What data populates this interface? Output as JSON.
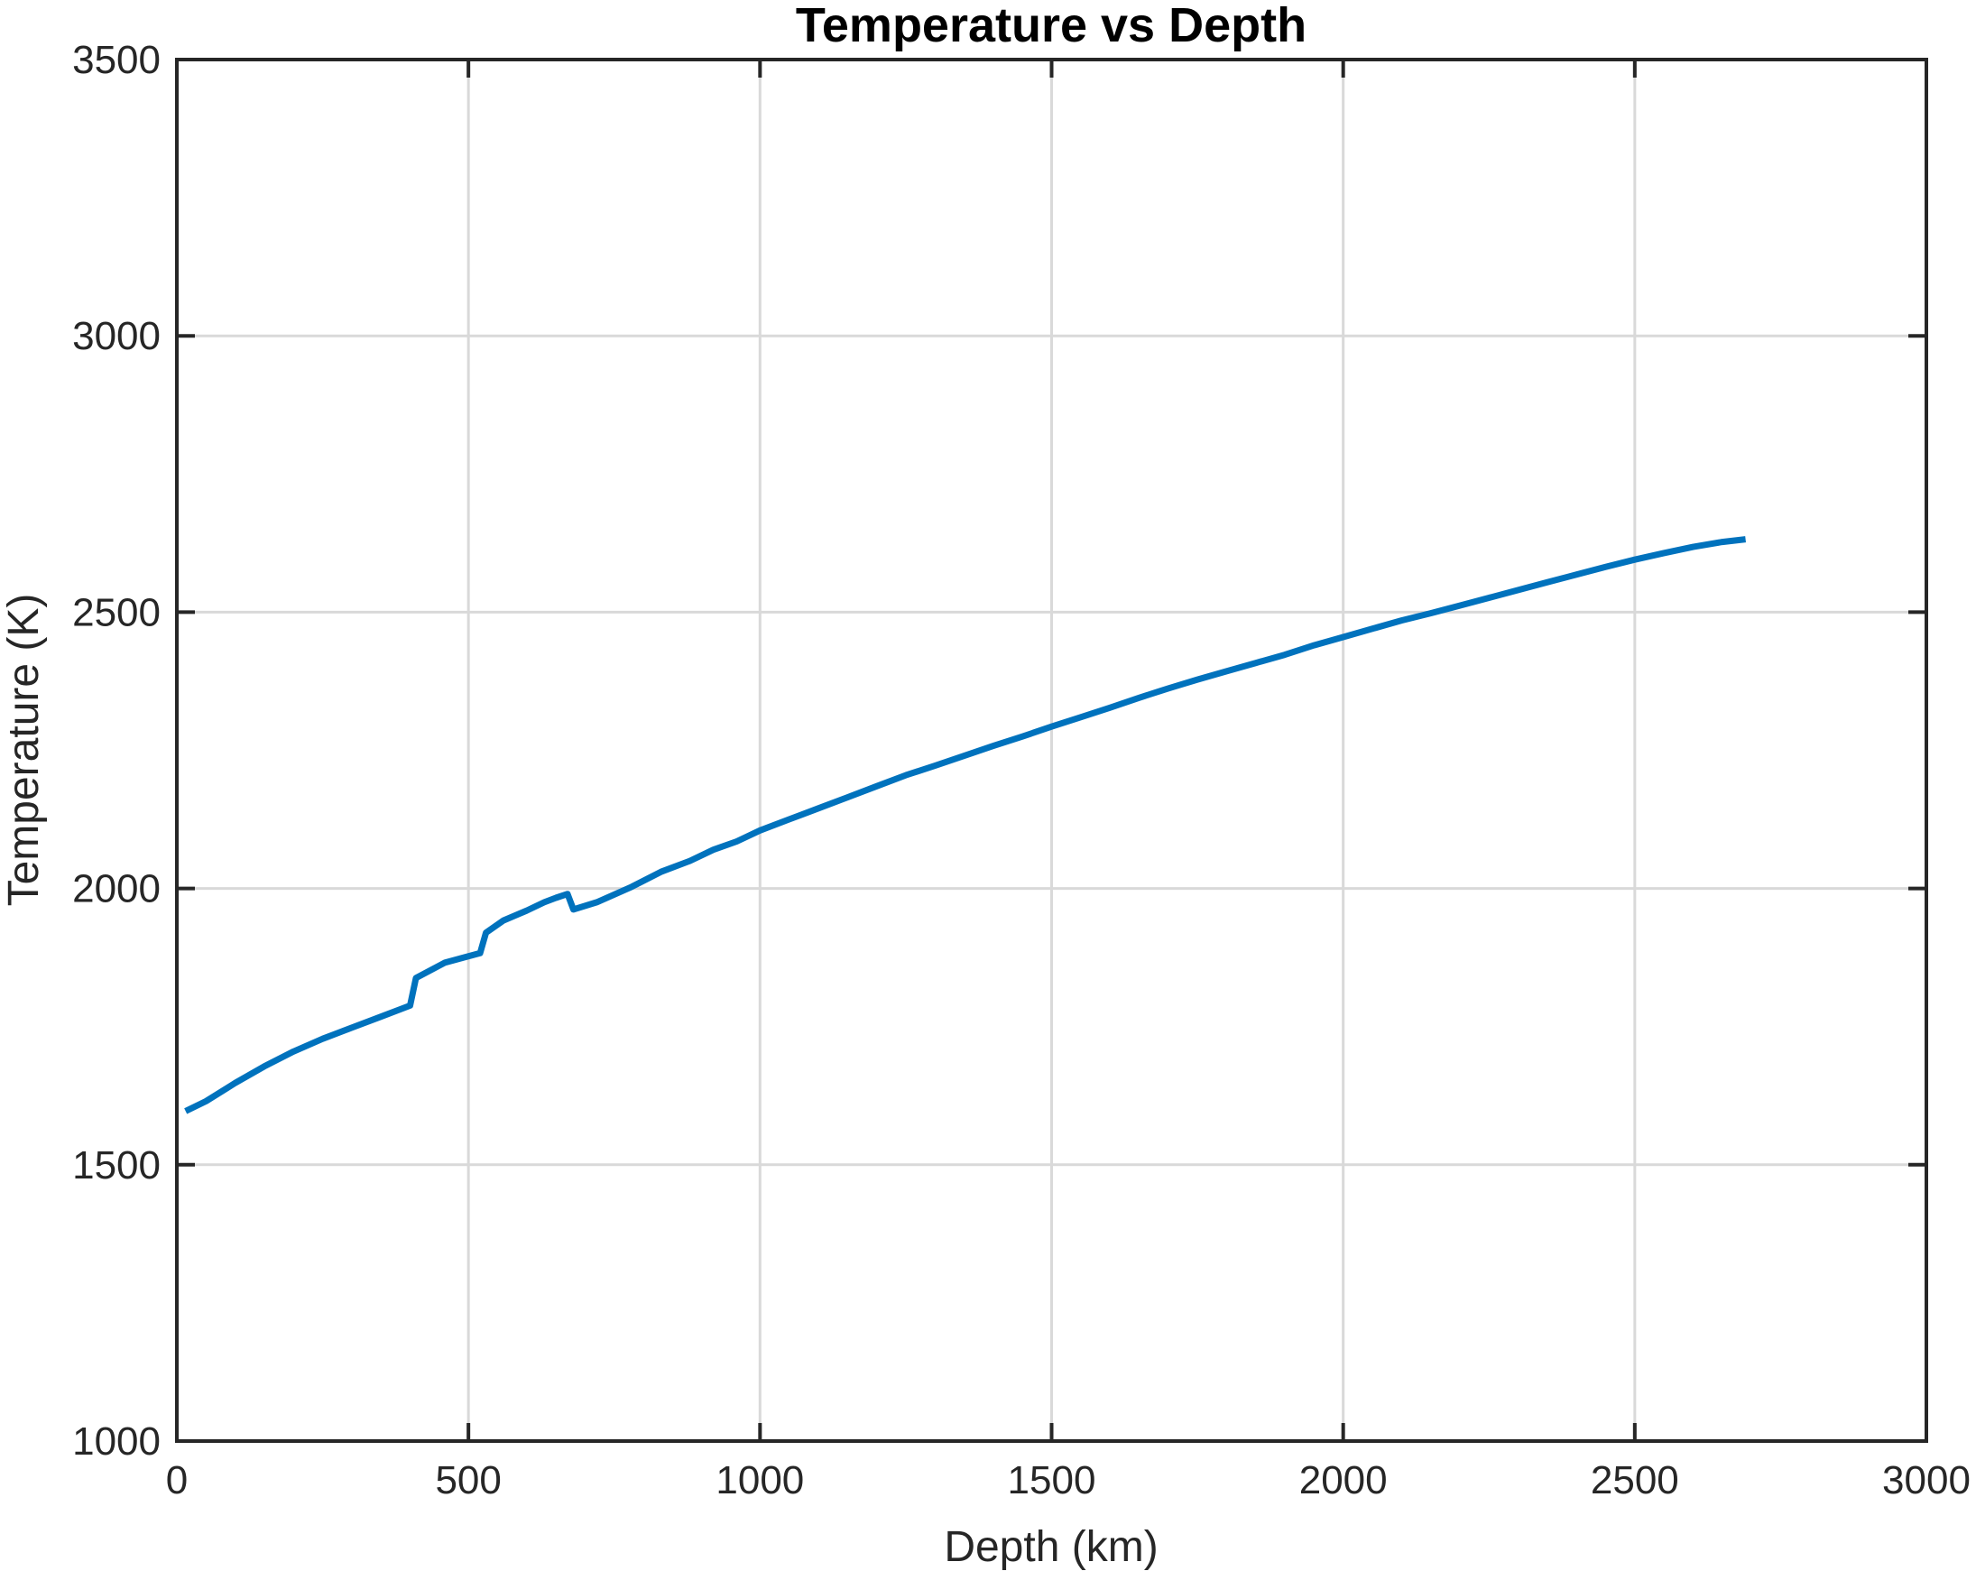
{
  "chart_data": {
    "type": "line",
    "title": "Temperature vs Depth",
    "xlabel": "Depth (km)",
    "ylabel": "Temperature (K)",
    "xlim": [
      0,
      3000
    ],
    "ylim": [
      1000,
      3500
    ],
    "xticks": [
      0,
      500,
      1000,
      1500,
      2000,
      2500,
      3000
    ],
    "yticks": [
      1000,
      1500,
      2000,
      2500,
      3000,
      3500
    ],
    "xtick_labels": [
      "0",
      "500",
      "1000",
      "1500",
      "2000",
      "2500",
      "3000"
    ],
    "ytick_labels": [
      "1000",
      "1500",
      "2000",
      "2500",
      "3000",
      "3500"
    ],
    "grid": true,
    "box": true,
    "series": [
      {
        "color": "#0072BD",
        "x": [
          15,
          50,
          100,
          150,
          200,
          250,
          300,
          350,
          400,
          410,
          460,
          520,
          530,
          560,
          600,
          630,
          650,
          670,
          680,
          720,
          780,
          830,
          880,
          920,
          960,
          1000,
          1050,
          1100,
          1150,
          1200,
          1250,
          1300,
          1350,
          1400,
          1450,
          1500,
          1550,
          1600,
          1650,
          1700,
          1750,
          1800,
          1850,
          1900,
          1950,
          2000,
          2050,
          2100,
          2150,
          2200,
          2250,
          2300,
          2350,
          2400,
          2450,
          2500,
          2550,
          2600,
          2650,
          2690
        ],
        "y": [
          1597,
          1615,
          1648,
          1678,
          1705,
          1728,
          1748,
          1768,
          1788,
          1838,
          1866,
          1883,
          1920,
          1942,
          1960,
          1975,
          1983,
          1990,
          1962,
          1975,
          2003,
          2030,
          2050,
          2070,
          2085,
          2105,
          2125,
          2145,
          2165,
          2185,
          2205,
          2222,
          2240,
          2258,
          2275,
          2293,
          2310,
          2327,
          2345,
          2362,
          2378,
          2393,
          2408,
          2423,
          2440,
          2455,
          2470,
          2485,
          2498,
          2512,
          2526,
          2540,
          2554,
          2568,
          2582,
          2595,
          2607,
          2618,
          2627,
          2632
        ]
      }
    ]
  }
}
